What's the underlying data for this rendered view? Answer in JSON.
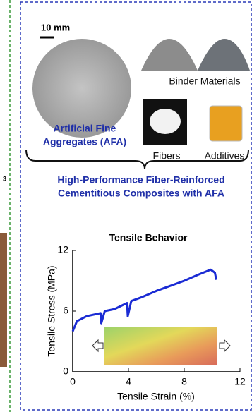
{
  "scale_label": "10 mm",
  "left_fragment": "3",
  "materials": {
    "binder": "Binder Materials",
    "aggregate": [
      "Artificial Fine",
      "Aggregates (AFA)"
    ],
    "fibers": "Fibers",
    "additives": "Additives"
  },
  "summary": [
    "High-Performance Fiber-Reinforced",
    "Cementitious Composites with AFA"
  ],
  "chart_data": {
    "type": "line",
    "title": "Tensile Behavior",
    "x_label": "Tensile Strain (%)",
    "y_label": "Tensile Stress (MPa)",
    "x": [
      0,
      0.3,
      1,
      2,
      2.05,
      2.3,
      3,
      3.9,
      3.95,
      4.2,
      5,
      6,
      7,
      8,
      9,
      9.9,
      10.2,
      10.3
    ],
    "series": [
      {
        "color": "#1a2bd4",
        "values": [
          4.0,
          5.0,
          5.5,
          5.8,
          4.8,
          6.0,
          6.2,
          6.8,
          5.5,
          7.0,
          7.4,
          8.0,
          8.5,
          9.0,
          9.6,
          10.1,
          9.8,
          9.1
        ]
      }
    ],
    "xlim": [
      0,
      12
    ],
    "ylim": [
      0,
      12
    ],
    "xticks": [
      0,
      4,
      8,
      12
    ],
    "yticks": [
      0,
      6,
      12
    ]
  }
}
